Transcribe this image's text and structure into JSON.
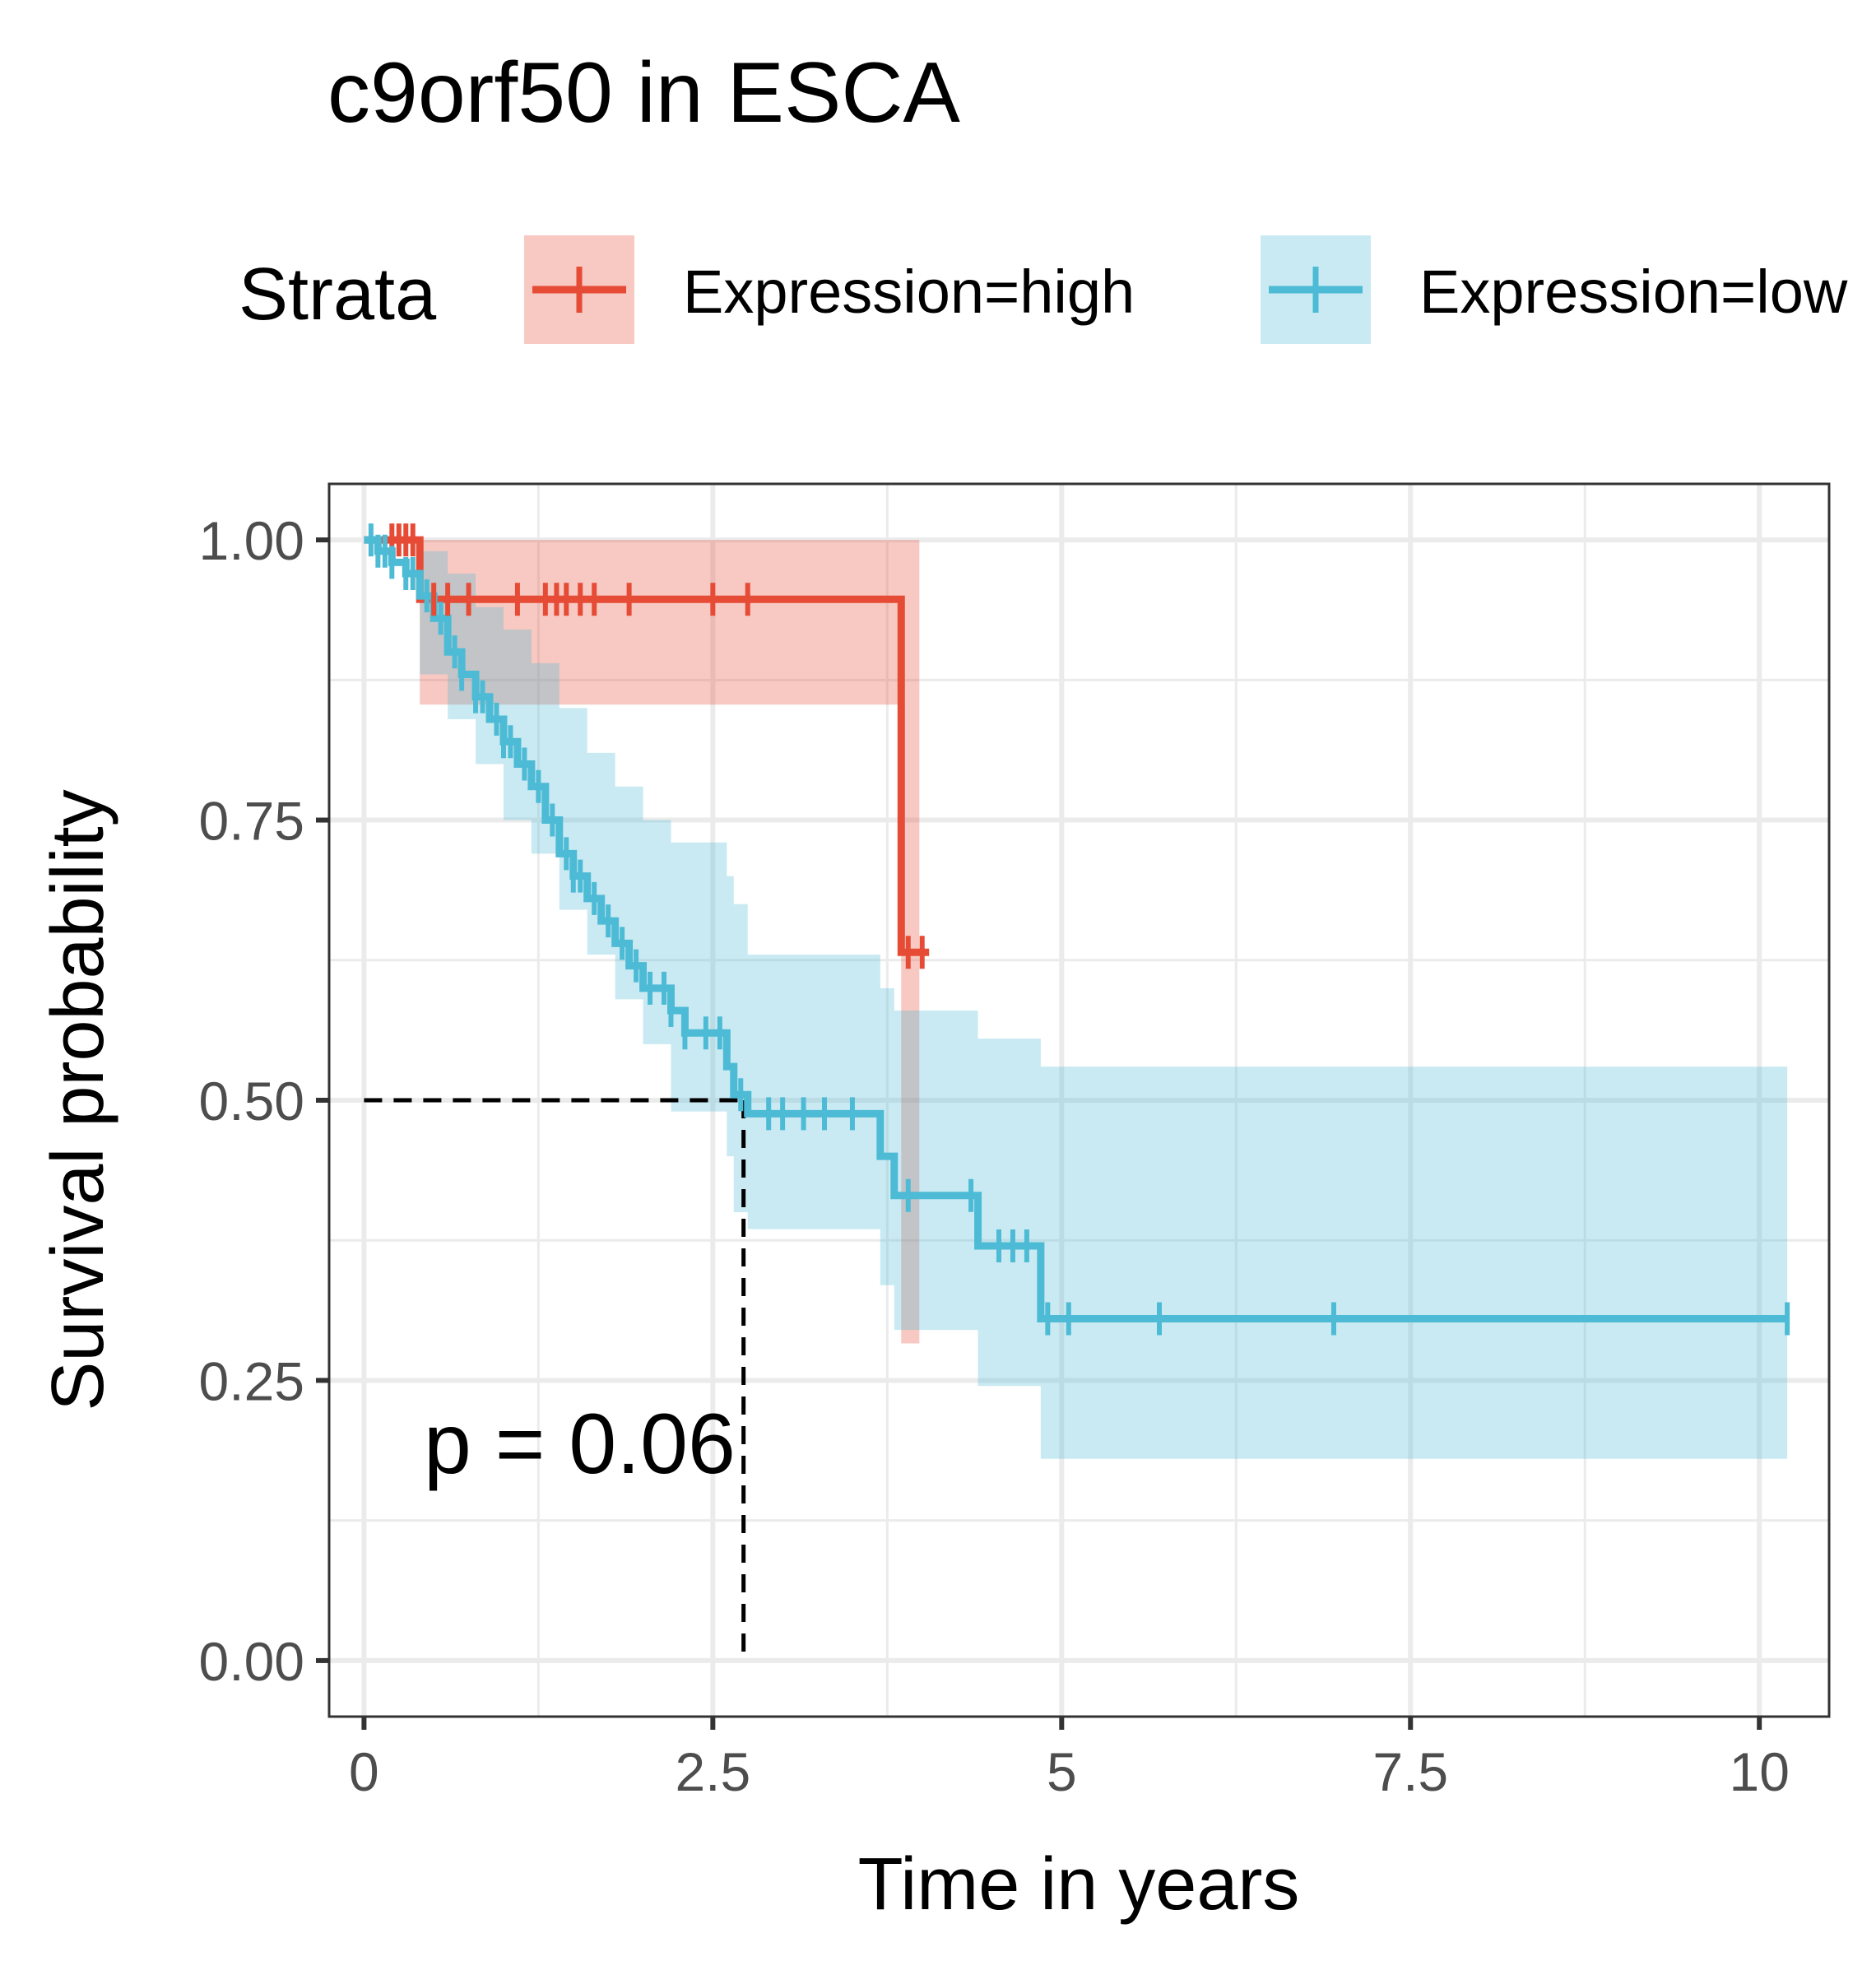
{
  "chart_data": {
    "type": "line",
    "subtype": "kaplan-meier survival curve with confidence bands",
    "title": "c9orf50 in ESCA",
    "xlabel": "Time in years",
    "ylabel": "Survival probability",
    "xlim": [
      -0.25,
      10.5
    ],
    "ylim": [
      -0.05,
      1.05
    ],
    "x_ticks": [
      0,
      2.5,
      5,
      7.5,
      10
    ],
    "x_tick_labels": [
      "0",
      "2.5",
      "5",
      "7.5",
      "10"
    ],
    "y_ticks": [
      0,
      0.25,
      0.5,
      0.75,
      1.0
    ],
    "y_tick_labels": [
      "0.00",
      "0.25",
      "0.50",
      "0.75",
      "1.00"
    ],
    "grid": true,
    "legend": {
      "title": "Strata",
      "position": "top",
      "entries": [
        "Expression=high",
        "Expression=low"
      ]
    },
    "annotation": "p = 0.06",
    "median_survival": {
      "y": 0.5,
      "x": 2.72
    },
    "series": [
      {
        "name": "Expression=high",
        "color": "#E64B35",
        "steps": [
          [
            0,
            1.0
          ],
          [
            0.4,
            0.947
          ],
          [
            3.85,
            0.947
          ],
          [
            3.85,
            0.632
          ],
          [
            4.05,
            0.632
          ]
        ],
        "ci_upper": [
          [
            0,
            1.0
          ],
          [
            0.4,
            1.0
          ],
          [
            3.85,
            1.0
          ],
          [
            3.98,
            1.0
          ]
        ],
        "ci_lower": [
          [
            0,
            1.0
          ],
          [
            0.4,
            0.853
          ],
          [
            3.85,
            0.853
          ],
          [
            3.85,
            0.283
          ],
          [
            3.98,
            0.283
          ]
        ],
        "censor_times": [
          0.2,
          0.25,
          0.3,
          0.35,
          0.5,
          0.6,
          0.75,
          1.1,
          1.3,
          1.38,
          1.45,
          1.55,
          1.65,
          1.9,
          2.5,
          2.75,
          3.9,
          4.0
        ]
      },
      {
        "name": "Expression=low",
        "color": "#4DBBD5",
        "steps": [
          [
            0,
            1.0
          ],
          [
            0.1,
            0.99
          ],
          [
            0.2,
            0.98
          ],
          [
            0.3,
            0.97
          ],
          [
            0.4,
            0.95
          ],
          [
            0.5,
            0.93
          ],
          [
            0.6,
            0.9
          ],
          [
            0.7,
            0.88
          ],
          [
            0.8,
            0.86
          ],
          [
            0.9,
            0.84
          ],
          [
            1.0,
            0.82
          ],
          [
            1.1,
            0.8
          ],
          [
            1.2,
            0.78
          ],
          [
            1.3,
            0.75
          ],
          [
            1.4,
            0.72
          ],
          [
            1.5,
            0.7
          ],
          [
            1.6,
            0.68
          ],
          [
            1.7,
            0.66
          ],
          [
            1.8,
            0.64
          ],
          [
            1.9,
            0.62
          ],
          [
            2.0,
            0.6
          ],
          [
            2.2,
            0.58
          ],
          [
            2.3,
            0.56
          ],
          [
            2.6,
            0.53
          ],
          [
            2.65,
            0.505
          ],
          [
            2.75,
            0.488
          ],
          [
            3.7,
            0.45
          ],
          [
            3.8,
            0.415
          ],
          [
            4.4,
            0.37
          ],
          [
            4.85,
            0.305
          ],
          [
            10.2,
            0.305
          ]
        ],
        "ci_upper": [
          [
            0,
            1.0
          ],
          [
            0.4,
            0.99
          ],
          [
            0.6,
            0.97
          ],
          [
            0.8,
            0.94
          ],
          [
            1.0,
            0.92
          ],
          [
            1.2,
            0.89
          ],
          [
            1.4,
            0.85
          ],
          [
            1.6,
            0.81
          ],
          [
            1.8,
            0.78
          ],
          [
            2.0,
            0.75
          ],
          [
            2.2,
            0.73
          ],
          [
            2.6,
            0.7
          ],
          [
            2.65,
            0.675
          ],
          [
            2.75,
            0.63
          ],
          [
            3.7,
            0.6
          ],
          [
            3.8,
            0.58
          ],
          [
            4.4,
            0.555
          ],
          [
            4.85,
            0.53
          ],
          [
            10.2,
            0.53
          ]
        ],
        "ci_lower": [
          [
            0,
            1.0
          ],
          [
            0.4,
            0.88
          ],
          [
            0.6,
            0.84
          ],
          [
            0.8,
            0.8
          ],
          [
            1.0,
            0.75
          ],
          [
            1.2,
            0.72
          ],
          [
            1.4,
            0.67
          ],
          [
            1.6,
            0.63
          ],
          [
            1.8,
            0.59
          ],
          [
            2.0,
            0.55
          ],
          [
            2.2,
            0.49
          ],
          [
            2.6,
            0.45
          ],
          [
            2.65,
            0.4
          ],
          [
            2.75,
            0.385
          ],
          [
            3.7,
            0.335
          ],
          [
            3.8,
            0.295
          ],
          [
            4.4,
            0.245
          ],
          [
            4.85,
            0.18
          ],
          [
            10.2,
            0.18
          ]
        ],
        "censor_times": [
          0.05,
          0.1,
          0.15,
          0.2,
          0.3,
          0.35,
          0.45,
          0.55,
          0.65,
          0.7,
          0.8,
          0.85,
          0.95,
          1.0,
          1.05,
          1.15,
          1.25,
          1.35,
          1.45,
          1.5,
          1.55,
          1.65,
          1.75,
          1.85,
          1.95,
          2.05,
          2.15,
          2.2,
          2.3,
          2.45,
          2.55,
          2.7,
          2.9,
          3.0,
          3.15,
          3.3,
          3.5,
          3.9,
          4.35,
          4.55,
          4.65,
          4.75,
          4.9,
          5.05,
          5.7,
          6.95,
          10.2
        ]
      }
    ]
  }
}
